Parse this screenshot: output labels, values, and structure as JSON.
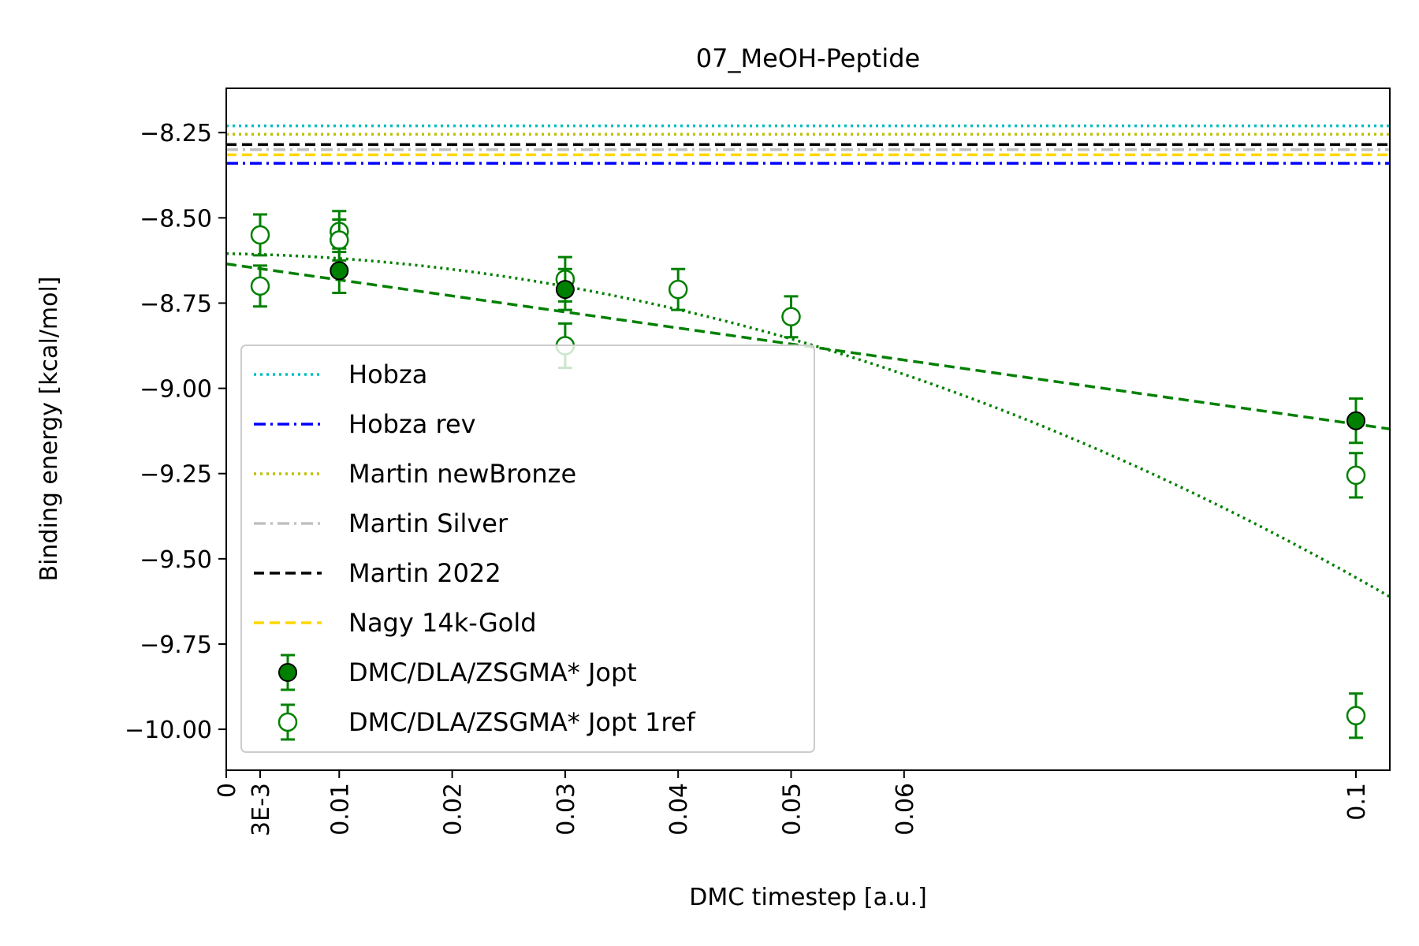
{
  "chart_data": {
    "type": "scatter",
    "title": "07_MeOH-Peptide",
    "xlabel": "DMC timestep [a.u.]",
    "ylabel": "Binding energy [kcal/mol]",
    "xlim": [
      0,
      0.103
    ],
    "ylim": [
      -10.12,
      -8.12
    ],
    "x_ticks": [
      {
        "value": 0,
        "label": "0"
      },
      {
        "value": 0.003,
        "label": "3E-3"
      },
      {
        "value": 0.01,
        "label": "0.01"
      },
      {
        "value": 0.02,
        "label": "0.02"
      },
      {
        "value": 0.03,
        "label": "0.03"
      },
      {
        "value": 0.04,
        "label": "0.04"
      },
      {
        "value": 0.05,
        "label": "0.05"
      },
      {
        "value": 0.06,
        "label": "0.06"
      },
      {
        "value": 0.1,
        "label": "0.1"
      }
    ],
    "y_ticks": [
      {
        "value": -8.25,
        "label": "−8.25"
      },
      {
        "value": -8.5,
        "label": "−8.50"
      },
      {
        "value": -8.75,
        "label": "−8.75"
      },
      {
        "value": -9.0,
        "label": "−9.00"
      },
      {
        "value": -9.25,
        "label": "−9.25"
      },
      {
        "value": -9.5,
        "label": "−9.50"
      },
      {
        "value": -9.75,
        "label": "−9.75"
      },
      {
        "value": -10.0,
        "label": "−10.00"
      }
    ],
    "reference_lines": [
      {
        "name": "Hobza",
        "value": -8.23,
        "color": "#00bfbf",
        "style": "dotted"
      },
      {
        "name": "Hobza rev",
        "value": -8.34,
        "color": "#0000ff",
        "style": "dashdot"
      },
      {
        "name": "Martin newBronze",
        "value": -8.255,
        "color": "#bfbf00",
        "style": "dotted"
      },
      {
        "name": "Martin Silver",
        "value": -8.3,
        "color": "#c0c0c0",
        "style": "dashdot"
      },
      {
        "name": "Martin 2022",
        "value": -8.285,
        "color": "#000000",
        "style": "dashed"
      },
      {
        "name": "Nagy 14k-Gold",
        "value": -8.315,
        "color": "#ffd700",
        "style": "dashed"
      }
    ],
    "series": [
      {
        "name": "DMC/DLA/ZSGMA* Jopt",
        "marker": "filled",
        "points": [
          {
            "x": 0.01,
            "y": -8.655,
            "err": 0.065
          },
          {
            "x": 0.03,
            "y": -8.71,
            "err": 0.06
          },
          {
            "x": 0.1,
            "y": -9.095,
            "err": 0.065
          }
        ]
      },
      {
        "name": "DMC/DLA/ZSGMA* Jopt 1ref",
        "marker": "open",
        "points": [
          {
            "x": 0.003,
            "y": -8.55,
            "err": 0.06
          },
          {
            "x": 0.003,
            "y": -8.7,
            "err": 0.06
          },
          {
            "x": 0.01,
            "y": -8.54,
            "err": 0.06
          },
          {
            "x": 0.01,
            "y": -8.565,
            "err": 0.06
          },
          {
            "x": 0.03,
            "y": -8.68,
            "err": 0.065
          },
          {
            "x": 0.03,
            "y": -8.875,
            "err": 0.065
          },
          {
            "x": 0.04,
            "y": -8.71,
            "err": 0.06
          },
          {
            "x": 0.05,
            "y": -8.79,
            "err": 0.06
          },
          {
            "x": 0.1,
            "y": -9.255,
            "err": 0.065
          },
          {
            "x": 0.1,
            "y": -9.96,
            "err": 0.065
          }
        ]
      }
    ],
    "fits": [
      {
        "kind": "linear",
        "style": "dashed",
        "color": "#008000",
        "coef": [
          -8.635,
          -4.7
        ]
      },
      {
        "kind": "quadratic",
        "style": "dotted",
        "color": "#008000",
        "coef": [
          -8.605,
          -0.5,
          -90.0
        ]
      }
    ],
    "legend": {
      "position": "bottom-left"
    },
    "colors": {
      "green": "#008000",
      "axis": "#000000"
    }
  }
}
